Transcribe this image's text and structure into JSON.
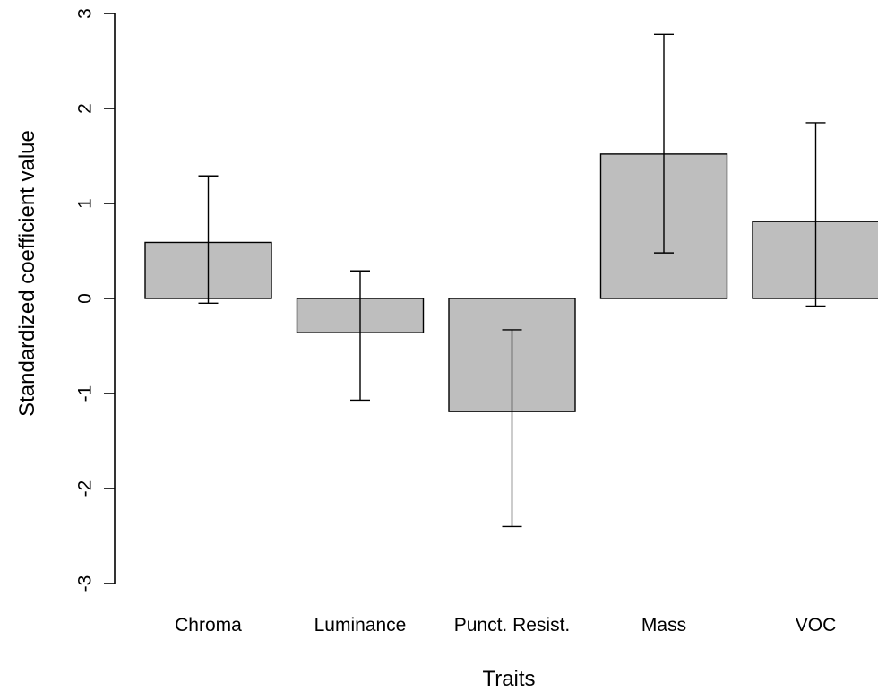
{
  "chart_data": {
    "type": "bar",
    "title": "",
    "xlabel": "Traits",
    "ylabel": "Standardized coefficient value",
    "categories": [
      "Chroma",
      "Luminance",
      "Punct. Resist.",
      "Mass",
      "VOC"
    ],
    "values": [
      0.59,
      -0.36,
      -1.19,
      1.52,
      0.81
    ],
    "error_low": [
      -0.05,
      -1.07,
      -2.4,
      0.48,
      -0.08
    ],
    "error_high": [
      1.29,
      0.29,
      -0.33,
      2.78,
      1.85
    ],
    "ylim": [
      -3,
      3
    ],
    "yticks": [
      -3,
      -2,
      -1,
      0,
      1,
      2,
      3
    ],
    "bar_color": "#bebebe",
    "grid": false,
    "legend": "none"
  }
}
